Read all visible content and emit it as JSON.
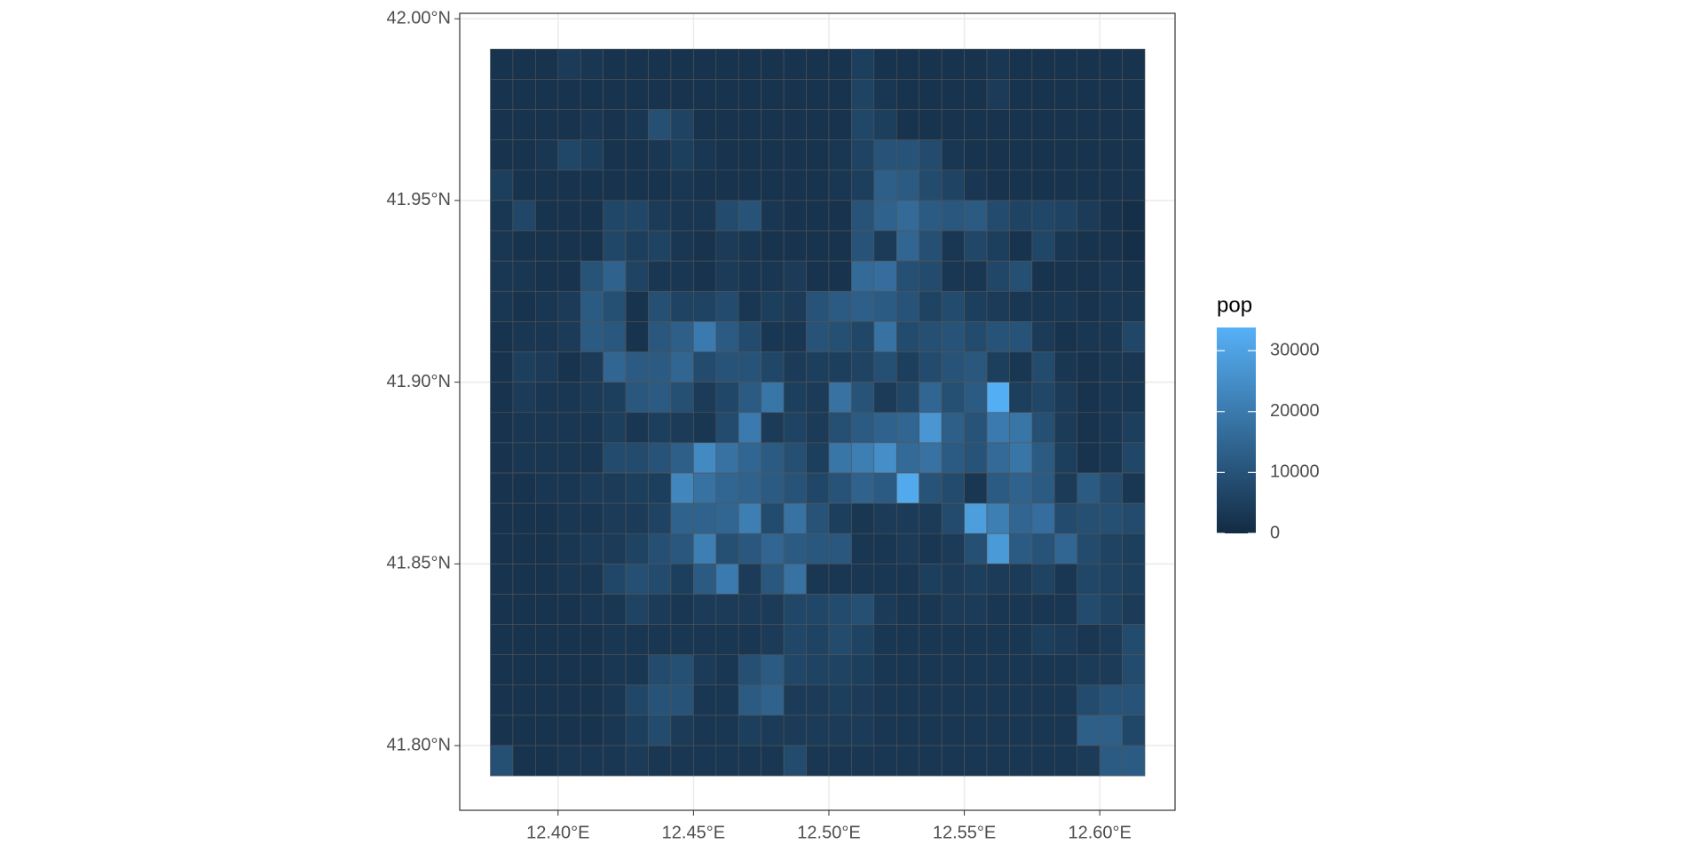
{
  "chart_data": {
    "type": "heatmap",
    "x": [
      12.37917,
      12.3875,
      12.39583,
      12.40417,
      12.4125,
      12.42083,
      12.42917,
      12.4375,
      12.44583,
      12.45417,
      12.4625,
      12.47083,
      12.47917,
      12.4875,
      12.49583,
      12.50417,
      12.5125,
      12.52083,
      12.52917,
      12.5375,
      12.54583,
      12.55417,
      12.5625,
      12.57083,
      12.57917,
      12.5875,
      12.59583,
      12.60417,
      12.6125
    ],
    "y": [
      41.9875,
      41.97917,
      41.97083,
      41.9625,
      41.95417,
      41.94583,
      41.9375,
      41.92917,
      41.92083,
      41.9125,
      41.90417,
      41.89583,
      41.8875,
      41.87917,
      41.87083,
      41.8625,
      41.85417,
      41.84583,
      41.8375,
      41.82917,
      41.82083,
      41.8125,
      41.80417,
      41.79583
    ],
    "z": [
      [
        2000,
        2000,
        2000,
        4000,
        3000,
        2000,
        2000,
        2000,
        2000,
        2000,
        2000,
        2000,
        2000,
        2000,
        2000,
        2000,
        5000,
        2000,
        2000,
        2000,
        2000,
        2000,
        3000,
        2000,
        2000,
        2000,
        2000,
        2000,
        2000
      ],
      [
        2000,
        2000,
        2000,
        2000,
        2000,
        2000,
        2000,
        2000,
        2000,
        2000,
        2000,
        2000,
        2000,
        2000,
        2000,
        2000,
        6000,
        3000,
        2000,
        2000,
        2000,
        2000,
        4000,
        2000,
        2000,
        2000,
        2000,
        2000,
        2000
      ],
      [
        2000,
        2000,
        2000,
        2000,
        3000,
        2000,
        3000,
        9000,
        6000,
        2000,
        2000,
        2000,
        2000,
        2000,
        2000,
        2000,
        7000,
        5000,
        2000,
        2000,
        2000,
        2000,
        2000,
        2000,
        2000,
        2000,
        2000,
        2000,
        2000
      ],
      [
        2000,
        2000,
        3000,
        7000,
        5000,
        2000,
        2000,
        3000,
        5000,
        3000,
        2000,
        2000,
        2000,
        2000,
        2000,
        3000,
        6000,
        10000,
        10000,
        8000,
        3000,
        2000,
        2000,
        2000,
        2000,
        2000,
        2000,
        2000,
        2000
      ],
      [
        5000,
        2000,
        2000,
        2000,
        2000,
        2000,
        2000,
        2000,
        3000,
        2000,
        2000,
        2000,
        2000,
        2000,
        2000,
        3000,
        5000,
        13000,
        12000,
        8000,
        6000,
        3000,
        2000,
        2000,
        2000,
        2000,
        2000,
        2000,
        2000
      ],
      [
        3000,
        7000,
        2000,
        2000,
        2000,
        7000,
        7000,
        4000,
        3000,
        3000,
        8000,
        10000,
        3000,
        2000,
        2000,
        2000,
        10000,
        14000,
        16000,
        12000,
        11000,
        12000,
        8000,
        6000,
        7000,
        6000,
        4000,
        2000,
        1000
      ],
      [
        3000,
        2000,
        2000,
        2000,
        2000,
        7000,
        5000,
        6000,
        3000,
        2000,
        4000,
        3000,
        2000,
        2000,
        2000,
        2000,
        10000,
        4000,
        15000,
        9000,
        3000,
        7000,
        5000,
        2000,
        7000,
        3000,
        2000,
        2000,
        1000
      ],
      [
        3000,
        3000,
        2000,
        2000,
        10000,
        14000,
        6000,
        3000,
        3000,
        2000,
        4000,
        3000,
        3000,
        4000,
        2000,
        2000,
        16000,
        17000,
        9000,
        8000,
        3000,
        3000,
        7000,
        9000,
        2000,
        2000,
        2000,
        3000,
        2000
      ],
      [
        3000,
        2000,
        3000,
        4000,
        12000,
        9000,
        2000,
        9000,
        6000,
        6000,
        8000,
        3000,
        5000,
        4000,
        10000,
        12000,
        13000,
        12000,
        10000,
        6000,
        8000,
        5000,
        4000,
        3000,
        3000,
        3000,
        2000,
        3000,
        3000
      ],
      [
        2000,
        3000,
        3000,
        4000,
        12000,
        11000,
        2000,
        11000,
        13000,
        20000,
        12000,
        8000,
        3000,
        3000,
        10000,
        9000,
        7000,
        18000,
        8000,
        9000,
        10000,
        8000,
        10000,
        10000,
        4000,
        2000,
        3000,
        3000,
        7000
      ],
      [
        2000,
        5000,
        4000,
        2000,
        4000,
        15000,
        12000,
        12000,
        15000,
        8000,
        10000,
        10000,
        7000,
        4000,
        5000,
        5000,
        6000,
        9000,
        5000,
        8000,
        10000,
        11000,
        5000,
        3000,
        8000,
        3000,
        2000,
        3000,
        3000
      ],
      [
        2000,
        4000,
        3000,
        3000,
        4000,
        5000,
        11000,
        12000,
        9000,
        4000,
        7000,
        12000,
        19000,
        5000,
        4000,
        18000,
        10000,
        4000,
        7000,
        15000,
        9000,
        12000,
        33000,
        5000,
        7000,
        4000,
        2000,
        3000,
        3000
      ],
      [
        2000,
        3000,
        3000,
        3000,
        3000,
        5000,
        3000,
        5000,
        4000,
        3000,
        8000,
        20000,
        4000,
        6000,
        4000,
        9000,
        12000,
        14000,
        15000,
        27000,
        13000,
        10000,
        20000,
        19000,
        9000,
        4000,
        2000,
        3000,
        5000
      ],
      [
        2000,
        3000,
        3000,
        3000,
        3000,
        8000,
        8000,
        10000,
        13000,
        24000,
        18000,
        15000,
        12000,
        9000,
        5000,
        19000,
        21000,
        25000,
        16000,
        18000,
        12000,
        10000,
        16000,
        19000,
        12000,
        5000,
        2000,
        3000,
        7000
      ],
      [
        2000,
        2000,
        3000,
        3000,
        4000,
        4000,
        5000,
        5000,
        23000,
        18000,
        15000,
        14000,
        12000,
        10000,
        7000,
        10000,
        14000,
        12000,
        32000,
        10000,
        8000,
        3000,
        12000,
        14000,
        12000,
        4000,
        12000,
        8000,
        3000
      ],
      [
        2000,
        2000,
        2000,
        3000,
        3000,
        4000,
        4000,
        6000,
        14000,
        14000,
        15000,
        21000,
        8000,
        18000,
        10000,
        5000,
        3000,
        4000,
        4000,
        4000,
        8000,
        29000,
        21000,
        15000,
        17000,
        8000,
        9000,
        9000,
        8000
      ],
      [
        2000,
        2000,
        2000,
        3000,
        4000,
        4000,
        6000,
        9000,
        11000,
        21000,
        9000,
        11000,
        15000,
        12000,
        11000,
        11000,
        3000,
        3000,
        4000,
        3000,
        4000,
        9000,
        28000,
        12000,
        10000,
        15000,
        8000,
        6000,
        5000
      ],
      [
        2000,
        2000,
        2000,
        3000,
        3000,
        7000,
        9000,
        8000,
        5000,
        12000,
        20000,
        4000,
        11000,
        18000,
        3000,
        3000,
        3000,
        3000,
        3000,
        5000,
        4000,
        5000,
        4000,
        4000,
        6000,
        3000,
        7000,
        6000,
        5000
      ],
      [
        2000,
        2000,
        2000,
        2000,
        3000,
        3000,
        6000,
        4000,
        3000,
        4000,
        4000,
        4000,
        4000,
        7000,
        7000,
        8000,
        9000,
        4000,
        3000,
        3000,
        4000,
        4000,
        3000,
        3000,
        3000,
        3000,
        8000,
        6000,
        4000
      ],
      [
        2000,
        2000,
        2000,
        2000,
        2000,
        3000,
        3000,
        3000,
        3000,
        3000,
        3000,
        3000,
        4000,
        7000,
        6000,
        8000,
        6000,
        3000,
        3000,
        3000,
        3000,
        3000,
        3000,
        3000,
        5000,
        4000,
        3000,
        4000,
        8000
      ],
      [
        2000,
        2000,
        2000,
        2000,
        2000,
        3000,
        3000,
        8000,
        9000,
        4000,
        3000,
        9000,
        12000,
        7000,
        6000,
        6000,
        5000,
        3000,
        3000,
        3000,
        3000,
        3000,
        3000,
        3000,
        3000,
        3000,
        4000,
        4000,
        8000
      ],
      [
        2000,
        2000,
        2000,
        2000,
        2000,
        3000,
        7000,
        10000,
        10000,
        3000,
        3000,
        12000,
        14000,
        4000,
        4000,
        5000,
        4000,
        3000,
        3000,
        3000,
        3000,
        3000,
        3000,
        3000,
        3000,
        3000,
        8000,
        10000,
        10000
      ],
      [
        2000,
        2000,
        2000,
        2000,
        2000,
        3000,
        5000,
        8000,
        4000,
        3000,
        3000,
        5000,
        4000,
        4000,
        4000,
        4000,
        4000,
        3000,
        3000,
        3000,
        3000,
        3000,
        3000,
        3000,
        3000,
        3000,
        13000,
        13000,
        7000
      ],
      [
        9000,
        2000,
        2000,
        3000,
        3000,
        3000,
        4000,
        3000,
        3000,
        3000,
        3000,
        3000,
        3000,
        8000,
        3000,
        3000,
        3000,
        3000,
        3000,
        3000,
        3000,
        3000,
        3000,
        3000,
        3000,
        3000,
        4000,
        12000,
        12000
      ]
    ],
    "xlim": [
      12.3637,
      12.6278
    ],
    "ylim": [
      41.7822,
      42.0015
    ],
    "xticks": [
      {
        "value": 12.4,
        "label": "12.40°E"
      },
      {
        "value": 12.45,
        "label": "12.45°E"
      },
      {
        "value": 12.5,
        "label": "12.50°E"
      },
      {
        "value": 12.55,
        "label": "12.55°E"
      },
      {
        "value": 12.6,
        "label": "12.60°E"
      }
    ],
    "yticks": [
      {
        "value": 41.8,
        "label": "41.80°N"
      },
      {
        "value": 41.85,
        "label": "41.85°N"
      },
      {
        "value": 41.9,
        "label": "41.90°N"
      },
      {
        "value": 41.95,
        "label": "41.95°N"
      },
      {
        "value": 42,
        "label": "42.00°N"
      }
    ],
    "grid": true,
    "colorscale": [
      "#132B43",
      "#56B1F7"
    ],
    "legend": {
      "title": "pop",
      "ticks": [
        0,
        10000,
        20000,
        30000
      ],
      "zlim": [
        0,
        33800
      ],
      "position": "right"
    }
  }
}
